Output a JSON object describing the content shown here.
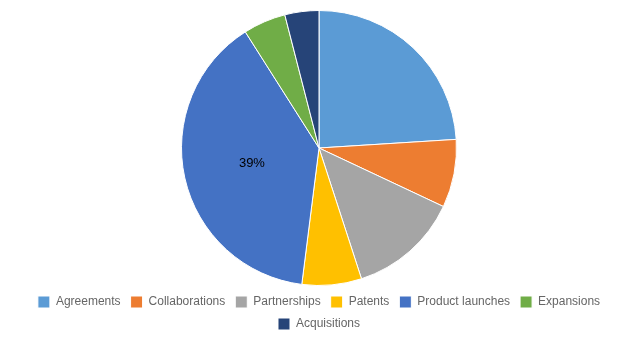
{
  "chart_data": {
    "type": "pie",
    "categories": [
      "Agreements",
      "Collaborations",
      "Partnerships",
      "Patents",
      "Product launches",
      "Expansions",
      "Acquisitions"
    ],
    "values": [
      24,
      8,
      13,
      7,
      39,
      5,
      4
    ],
    "value_labels": [
      null,
      null,
      null,
      null,
      "39%",
      null,
      null
    ],
    "colors": [
      "#5B9BD5",
      "#ED7D31",
      "#A5A5A5",
      "#FFC000",
      "#4472C4",
      "#70AD47",
      "#264478"
    ],
    "legend": "bottom"
  }
}
